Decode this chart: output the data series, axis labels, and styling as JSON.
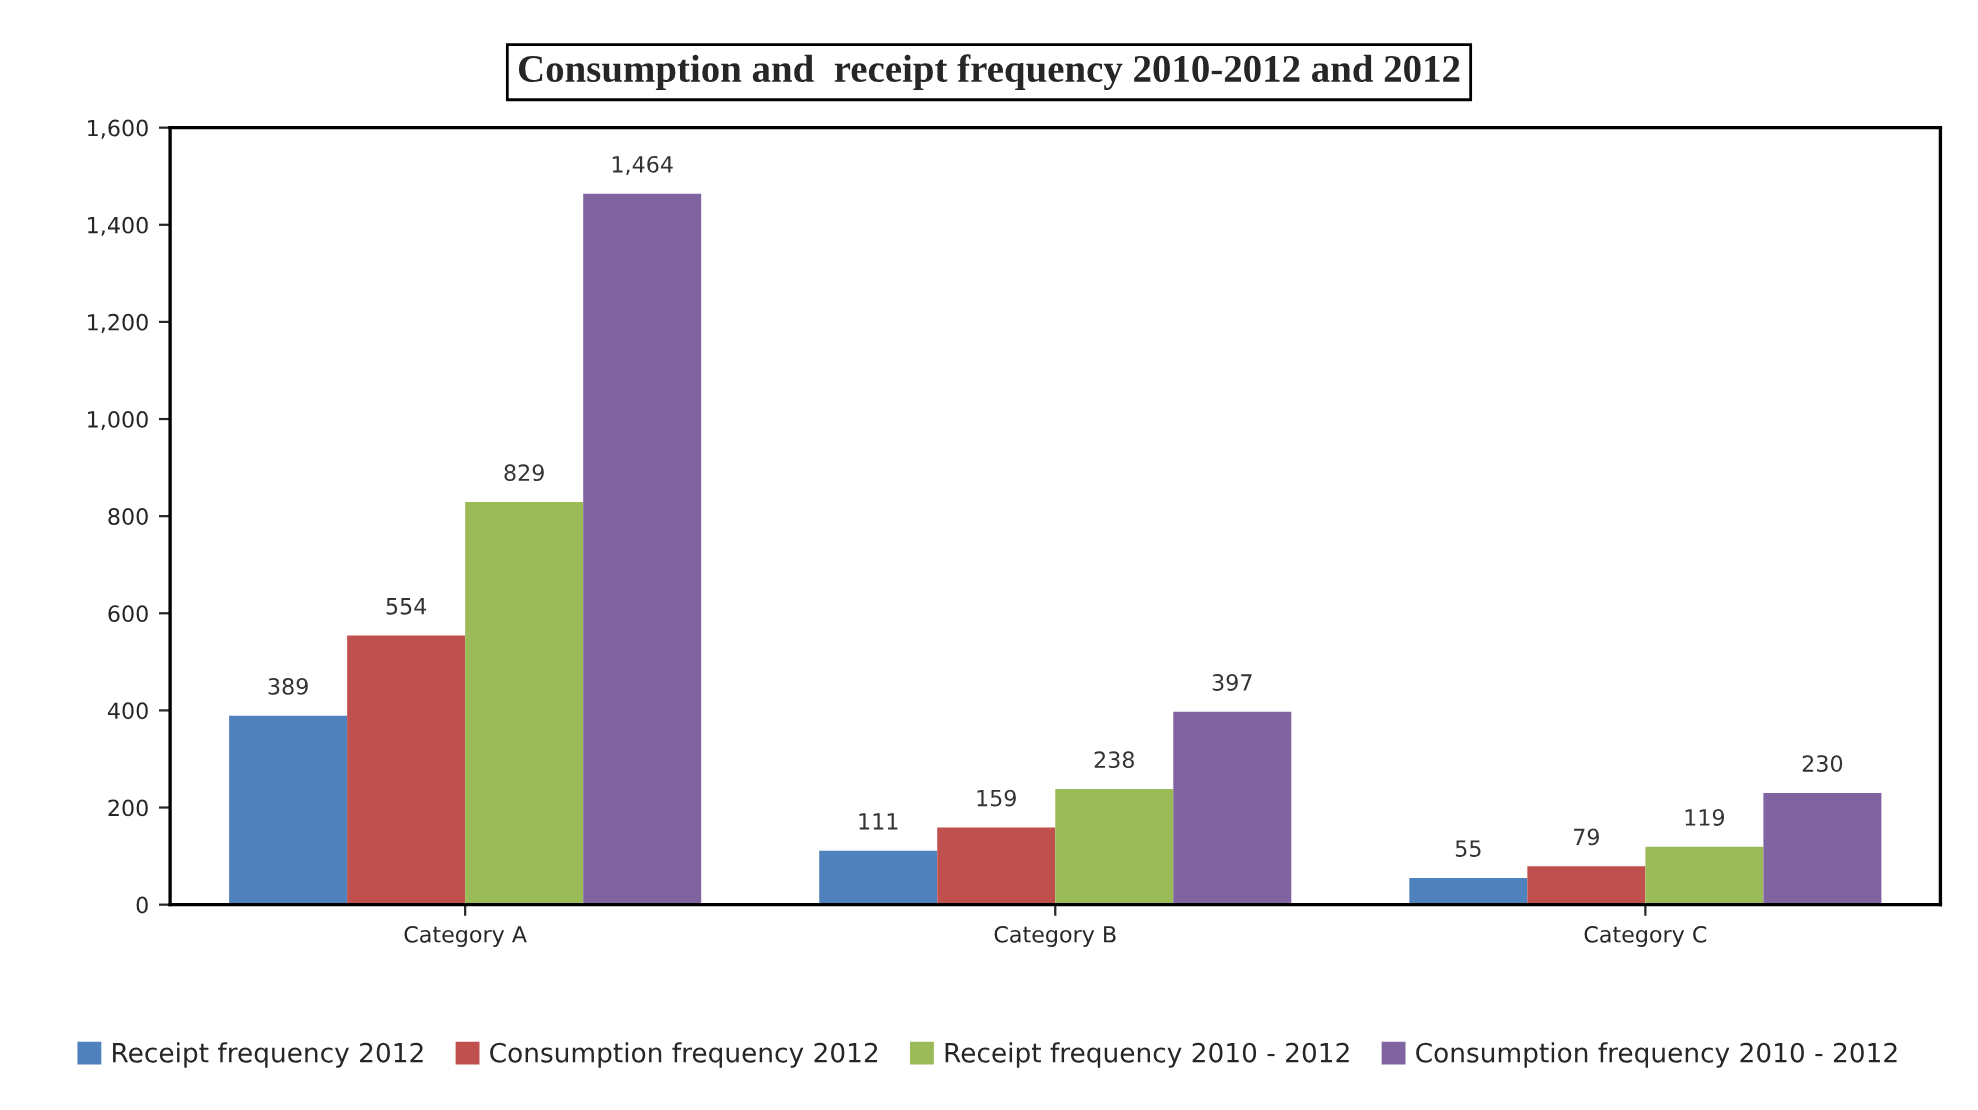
{
  "chart_data": {
    "type": "bar",
    "title": "Consumption and  receipt frequency 2010-2012 and 2012",
    "categories": [
      "Category A",
      "Category B",
      "Category C"
    ],
    "series": [
      {
        "name": "Receipt frequency 2012",
        "color": "#4f81bd",
        "values": [
          389,
          111,
          55
        ],
        "value_labels": [
          "389",
          "111",
          "55"
        ]
      },
      {
        "name": "Consumption frequency 2012",
        "color": "#c0504d",
        "values": [
          554,
          159,
          79
        ],
        "value_labels": [
          "554",
          "159",
          "79"
        ]
      },
      {
        "name": "Receipt frequency 2010 - 2012",
        "color": "#9bbb59",
        "values": [
          829,
          238,
          119
        ],
        "value_labels": [
          "829",
          "238",
          "119"
        ]
      },
      {
        "name": "Consumption frequency 2010 - 2012",
        "color": "#8064a2",
        "values": [
          1464,
          397,
          230
        ],
        "value_labels": [
          "1,464",
          "397",
          "230"
        ]
      }
    ],
    "ylim": [
      0,
      1600
    ],
    "yticks": [
      0,
      200,
      400,
      600,
      800,
      {
        "value": 1000,
        "label": "1,000"
      },
      {
        "value": 1200,
        "label": "1,200"
      },
      {
        "value": 1400,
        "label": "1,400"
      },
      {
        "value": 1600,
        "label": "1,600"
      }
    ],
    "grid": false,
    "legend": "bottom"
  }
}
